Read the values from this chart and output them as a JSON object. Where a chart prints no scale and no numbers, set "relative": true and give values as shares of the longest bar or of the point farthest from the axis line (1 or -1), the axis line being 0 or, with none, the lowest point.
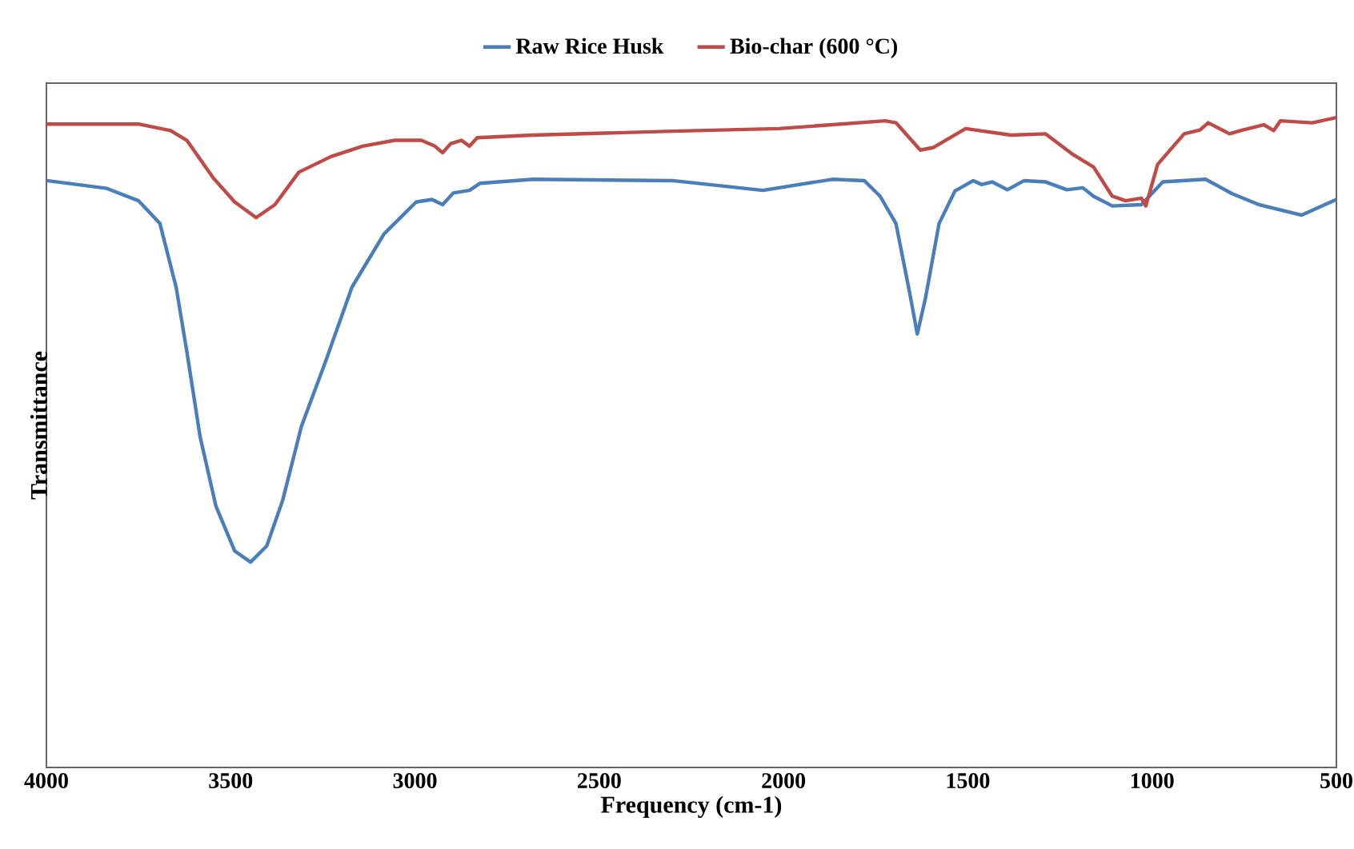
{
  "chart_data": {
    "type": "line",
    "xlabel": "Frequency (cm-1)",
    "ylabel": "Transmittance",
    "relative": true,
    "xlim": [
      4000,
      500
    ],
    "xticks": [
      4000,
      3500,
      3000,
      2500,
      2000,
      1500,
      1000,
      500
    ],
    "legend": "top",
    "grid": false,
    "marker": "none",
    "line_style": "solid",
    "series": [
      {
        "name": "Raw Rice Husk",
        "color": "#4a7ebb",
        "x": [
          4000,
          3836,
          3750,
          3692,
          3648,
          3619,
          3583,
          3540,
          3489,
          3446,
          3402,
          3359,
          3308,
          3243,
          3171,
          3084,
          2997,
          2954,
          2925,
          2896,
          2852,
          2823,
          2679,
          2302,
          2056,
          1868,
          1781,
          1738,
          1695,
          1658,
          1637,
          1615,
          1578,
          1535,
          1485,
          1463,
          1434,
          1393,
          1347,
          1289,
          1231,
          1188,
          1159,
          1108,
          1029,
          971,
          855,
          783,
          710,
          594,
          500
        ],
        "values": [
          0.903,
          0.891,
          0.872,
          0.837,
          0.739,
          0.64,
          0.509,
          0.402,
          0.333,
          0.316,
          0.341,
          0.411,
          0.525,
          0.624,
          0.739,
          0.821,
          0.87,
          0.874,
          0.866,
          0.884,
          0.888,
          0.899,
          0.905,
          0.903,
          0.888,
          0.905,
          0.903,
          0.879,
          0.837,
          0.731,
          0.667,
          0.722,
          0.837,
          0.887,
          0.903,
          0.897,
          0.901,
          0.889,
          0.903,
          0.901,
          0.889,
          0.892,
          0.879,
          0.864,
          0.866,
          0.901,
          0.905,
          0.883,
          0.866,
          0.85,
          0.874
        ]
      },
      {
        "name": "Bio-char (600 °C)",
        "color": "#be4b48",
        "x": [
          4000,
          3750,
          3663,
          3619,
          3547,
          3489,
          3431,
          3380,
          3315,
          3228,
          3142,
          3055,
          2983,
          2946,
          2925,
          2903,
          2874,
          2852,
          2831,
          2680,
          2302,
          2013,
          1724,
          1695,
          1629,
          1593,
          1506,
          1383,
          1289,
          1217,
          1159,
          1108,
          1072,
          1029,
          1017,
          985,
          913,
          870,
          848,
          790,
          754,
          697,
          670,
          652,
          566,
          500
        ],
        "values": [
          0.99,
          0.99,
          0.98,
          0.965,
          0.907,
          0.87,
          0.846,
          0.866,
          0.916,
          0.94,
          0.956,
          0.965,
          0.965,
          0.956,
          0.946,
          0.96,
          0.965,
          0.956,
          0.969,
          0.973,
          0.979,
          0.983,
          0.995,
          0.992,
          0.95,
          0.954,
          0.983,
          0.973,
          0.975,
          0.944,
          0.924,
          0.879,
          0.872,
          0.876,
          0.864,
          0.928,
          0.975,
          0.981,
          0.992,
          0.975,
          0.981,
          0.989,
          0.98,
          0.995,
          0.992,
          1.0
        ]
      }
    ]
  }
}
